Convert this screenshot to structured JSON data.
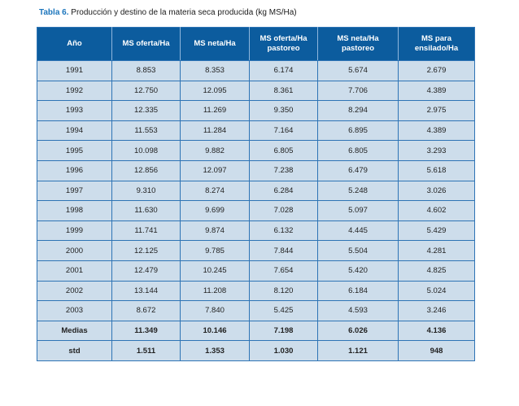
{
  "title": {
    "label": "Tabla 6.",
    "text": " Producción y destino de la materia seca producida (kg MS/Ha)"
  },
  "table": {
    "columns": [
      "Año",
      "MS oferta/Ha",
      "MS neta/Ha",
      "MS oferta/Ha pastoreo",
      "MS neta/Ha pastoreo",
      "MS para ensilado/Ha"
    ],
    "rows": [
      {
        "bold": false,
        "cells": [
          "1991",
          "8.853",
          "8.353",
          "6.174",
          "5.674",
          "2.679"
        ]
      },
      {
        "bold": false,
        "cells": [
          "1992",
          "12.750",
          "12.095",
          "8.361",
          "7.706",
          "4.389"
        ]
      },
      {
        "bold": false,
        "cells": [
          "1993",
          "12.335",
          "11.269",
          "9.350",
          "8.294",
          "2.975"
        ]
      },
      {
        "bold": false,
        "cells": [
          "1994",
          "11.553",
          "11.284",
          "7.164",
          "6.895",
          "4.389"
        ]
      },
      {
        "bold": false,
        "cells": [
          "1995",
          "10.098",
          "9.882",
          "6.805",
          "6.805",
          "3.293"
        ]
      },
      {
        "bold": false,
        "cells": [
          "1996",
          "12.856",
          "12.097",
          "7.238",
          "6.479",
          "5.618"
        ]
      },
      {
        "bold": false,
        "cells": [
          "1997",
          "9.310",
          "8.274",
          "6.284",
          "5.248",
          "3.026"
        ]
      },
      {
        "bold": false,
        "cells": [
          "1998",
          "11.630",
          "9.699",
          "7.028",
          "5.097",
          "4.602"
        ]
      },
      {
        "bold": false,
        "cells": [
          "1999",
          "11.741",
          "9.874",
          "6.132",
          "4.445",
          "5.429"
        ]
      },
      {
        "bold": false,
        "cells": [
          "2000",
          "12.125",
          "9.785",
          "7.844",
          "5.504",
          "4.281"
        ]
      },
      {
        "bold": false,
        "cells": [
          "2001",
          "12.479",
          "10.245",
          "7.654",
          "5.420",
          "4.825"
        ]
      },
      {
        "bold": false,
        "cells": [
          "2002",
          "13.144",
          "11.208",
          "8.120",
          "6.184",
          "5.024"
        ]
      },
      {
        "bold": false,
        "cells": [
          "2003",
          "8.672",
          "7.840",
          "5.425",
          "4.593",
          "3.246"
        ]
      },
      {
        "bold": true,
        "cells": [
          "Medias",
          "11.349",
          "10.146",
          "7.198",
          "6.026",
          "4.136"
        ]
      },
      {
        "bold": true,
        "cells": [
          "std",
          "1.511",
          "1.353",
          "1.030",
          "1.121",
          "948"
        ]
      }
    ]
  },
  "colors": {
    "header_bg": "#0c5c9e",
    "row_bg": "#cdddeb",
    "border": "#2e74b5",
    "header_divider": "#8fb6dc",
    "title_accent": "#1b75bc"
  }
}
